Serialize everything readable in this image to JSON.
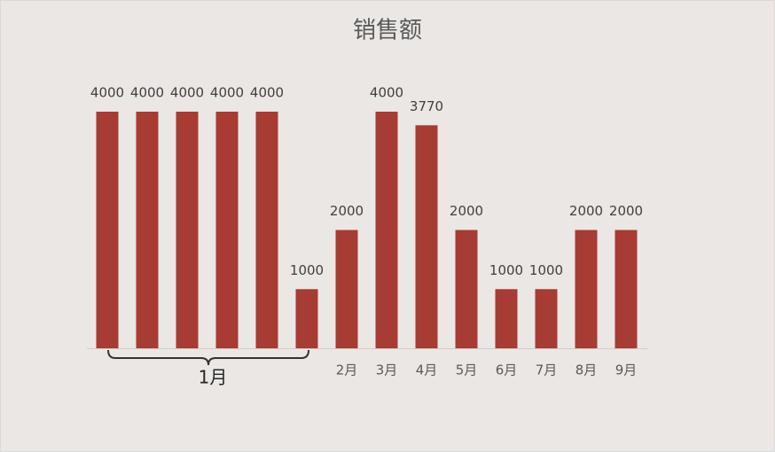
{
  "chart_data": {
    "type": "bar",
    "title": "销售额",
    "categories": [
      null,
      null,
      null,
      null,
      null,
      null,
      "2月",
      "3月",
      "4月",
      "5月",
      "6月",
      "7月",
      "8月",
      "9月"
    ],
    "values": [
      4000,
      4000,
      4000,
      4000,
      4000,
      1000,
      2000,
      4000,
      3770,
      2000,
      1000,
      1000,
      2000,
      2000
    ],
    "color": "#a63c33",
    "ylim": [
      0,
      4000
    ],
    "annotations": [
      "1月"
    ]
  }
}
